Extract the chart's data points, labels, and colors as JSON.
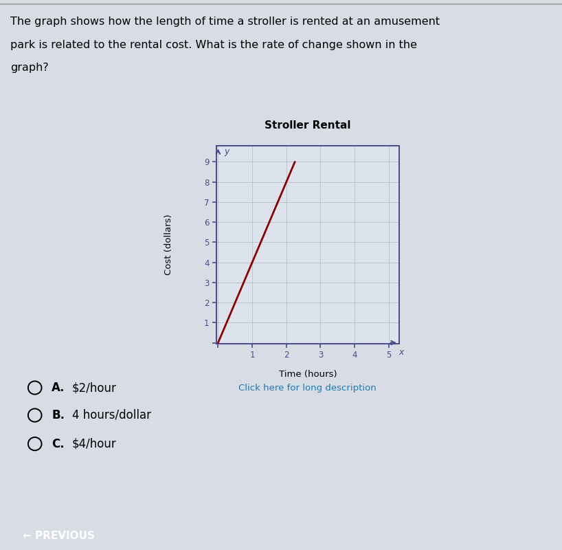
{
  "title": "Stroller Rental",
  "xlabel": "Time (hours)",
  "ylabel": "Cost (dollars)",
  "x_data": [
    0,
    2.25
  ],
  "y_data": [
    0,
    9
  ],
  "xlim": [
    -0.05,
    5.3
  ],
  "ylim": [
    -0.05,
    9.8
  ],
  "xticks": [
    0,
    1,
    2,
    3,
    4,
    5
  ],
  "yticks": [
    0,
    1,
    2,
    3,
    4,
    5,
    6,
    7,
    8,
    9
  ],
  "line_color": "#8B0000",
  "line_width": 2.0,
  "grid_color": "#b8bfc8",
  "axis_color": "#4a4a8a",
  "bg_color": "#dce3ed",
  "page_bg": "#d8dce4",
  "question_text_line1": "The graph shows how the length of time a stroller is rented at an amusement",
  "question_text_line2": "park is related to the rental cost. What is the rate of change shown in the",
  "question_text_line3": "graph?",
  "click_text": "Click here for long description",
  "answer_A": "$2/hour",
  "answer_B": "4 hours/dollar",
  "answer_C": "$4/hour",
  "answer_labels": [
    "A.",
    "B.",
    "C."
  ],
  "prev_text": "← PREVIOUS",
  "title_fontsize": 11,
  "label_fontsize": 9.5,
  "tick_fontsize": 8.5,
  "question_fontsize": 11.5,
  "answer_fontsize": 12,
  "prev_bg": "#3355aa"
}
